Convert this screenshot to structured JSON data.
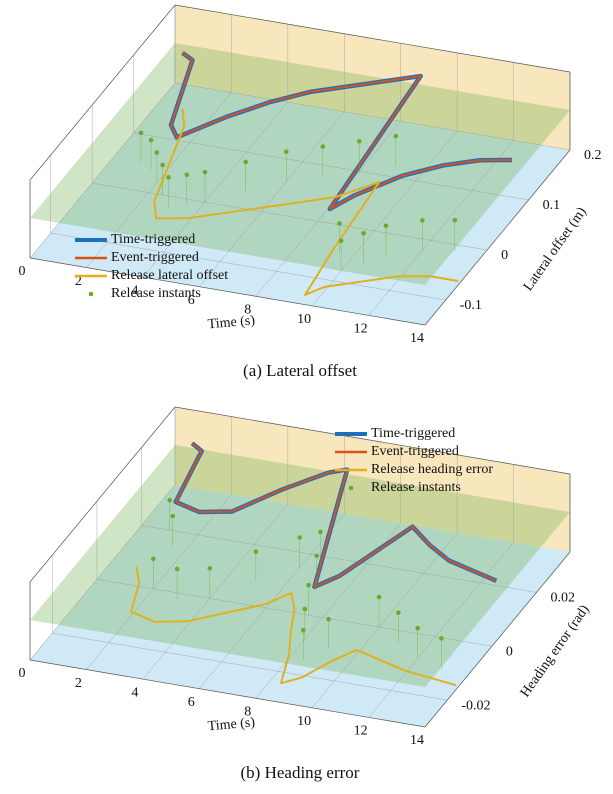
{
  "chart_data": [
    {
      "type": "line3d",
      "caption": "(a) Lateral offset",
      "xlabel": "Time (s)",
      "ylabel": "Lateral offset (m)",
      "xlim": [
        0,
        14
      ],
      "xticks": [
        0,
        2,
        4,
        6,
        8,
        10,
        12,
        14
      ],
      "ylim": [
        -0.15,
        0.2
      ],
      "yticks": [
        -0.1,
        0,
        0.1,
        0.2
      ],
      "legend": "lower left",
      "series": [
        {
          "name": "Time-triggered",
          "color": "#1f6fbf",
          "x": [
            1,
            1.5,
            2,
            2.5,
            3,
            4,
            5,
            6,
            7,
            8,
            8.5,
            9,
            9.3,
            9.6,
            10,
            11,
            12,
            13,
            14
          ],
          "values": [
            0.15,
            0.14,
            0.08,
            0.02,
            0.0,
            0.05,
            0.09,
            0.12,
            0.14,
            0.16,
            0.17,
            0.18,
            0.05,
            -0.08,
            -0.05,
            0.0,
            0.03,
            0.05,
            0.06
          ]
        },
        {
          "name": "Event-triggered",
          "color": "#d95319",
          "x": [
            1,
            1.5,
            2,
            2.5,
            3,
            4,
            5,
            6,
            7,
            8,
            8.5,
            9,
            9.3,
            9.6,
            10,
            11,
            12,
            13,
            14
          ],
          "values": [
            0.15,
            0.14,
            0.08,
            0.02,
            0.0,
            0.05,
            0.09,
            0.12,
            0.14,
            0.16,
            0.17,
            0.18,
            0.05,
            -0.08,
            -0.05,
            0.0,
            0.03,
            0.05,
            0.06
          ]
        },
        {
          "name": "Release lateral offset",
          "color": "#e0b020",
          "x": [
            1,
            1.5,
            2,
            2.5,
            3,
            4,
            5,
            6,
            7,
            8,
            8.5,
            9,
            9.3,
            9.6,
            10,
            11,
            12,
            13,
            14
          ],
          "values": [
            0.15,
            0.12,
            0.05,
            -0.02,
            -0.05,
            -0.04,
            -0.02,
            0.0,
            0.02,
            0.04,
            0.06,
            0.08,
            -0.05,
            -0.14,
            -0.12,
            -0.1,
            -0.08,
            -0.07,
            -0.07
          ]
        },
        {
          "name": "Release instants",
          "color": "#6aaa2a",
          "x": [
            1,
            1.5,
            2,
            2.5,
            3,
            3.5,
            4,
            5,
            6,
            7,
            8,
            9,
            9.5,
            10,
            10.5,
            11,
            12,
            13
          ],
          "values": [
            0.05,
            0.04,
            0.02,
            0.0,
            -0.02,
            -0.01,
            0.0,
            0.03,
            0.06,
            0.08,
            0.1,
            0.12,
            -0.05,
            -0.08,
            -0.06,
            -0.04,
            -0.02,
            -0.01
          ]
        }
      ]
    },
    {
      "type": "line3d",
      "caption": "(b) Heading error",
      "xlabel": "Time (s)",
      "ylabel": "Heading error (rad)",
      "xlim": [
        0,
        14
      ],
      "xticks": [
        0,
        2,
        4,
        6,
        8,
        10,
        12,
        14
      ],
      "ylim": [
        -0.03,
        0.035
      ],
      "yticks": [
        -0.02,
        0,
        0.02
      ],
      "legend": "upper right",
      "series": [
        {
          "name": "Time-triggered",
          "color": "#1f6fbf",
          "x": [
            1,
            1.5,
            2,
            3,
            4,
            5,
            6,
            6.5,
            7,
            7.5,
            8,
            8.5,
            9,
            9.5,
            10,
            11,
            12,
            13,
            14
          ],
          "values": [
            0.03,
            0.028,
            0.01,
            0.008,
            0.01,
            0.02,
            0.028,
            0.03,
            0.02,
            0.01,
            0.0,
            -0.01,
            -0.005,
            0.005,
            0.015,
            0.01,
            0.006,
            0.004,
            0.002
          ]
        },
        {
          "name": "Event-triggered",
          "color": "#d95319",
          "x": [
            1,
            1.5,
            2,
            3,
            4,
            5,
            6,
            6.5,
            7,
            7.5,
            8,
            8.5,
            9,
            9.5,
            10,
            11,
            12,
            13,
            14
          ],
          "values": [
            0.03,
            0.028,
            0.01,
            0.008,
            0.01,
            0.02,
            0.028,
            0.03,
            0.02,
            0.01,
            0.0,
            -0.01,
            -0.005,
            0.005,
            0.015,
            0.01,
            0.006,
            0.004,
            0.002
          ]
        },
        {
          "name": "Release heading error",
          "color": "#e0b020",
          "x": [
            1,
            1.5,
            2,
            3,
            4,
            5,
            6,
            6.5,
            7,
            7.5,
            8,
            8.5,
            9,
            9.5,
            10,
            11,
            12,
            13,
            14
          ],
          "values": [
            0.005,
            0.0,
            -0.01,
            -0.012,
            -0.01,
            -0.005,
            0.0,
            0.005,
            0.0,
            -0.008,
            -0.015,
            -0.025,
            -0.022,
            -0.015,
            -0.01,
            -0.012,
            -0.014,
            -0.015,
            -0.016
          ]
        },
        {
          "name": "Release instants",
          "color": "#6aaa2a",
          "x": [
            1,
            1.5,
            2,
            3,
            4,
            5,
            6,
            6.5,
            7,
            7.5,
            8,
            8.5,
            9,
            10,
            11,
            12,
            13
          ],
          "values": [
            0.02,
            0.015,
            0.0,
            -0.002,
            0.0,
            0.008,
            0.015,
            0.018,
            0.01,
            0.0,
            -0.008,
            -0.015,
            -0.01,
            0.0,
            -0.004,
            -0.008,
            -0.01
          ]
        }
      ]
    }
  ]
}
